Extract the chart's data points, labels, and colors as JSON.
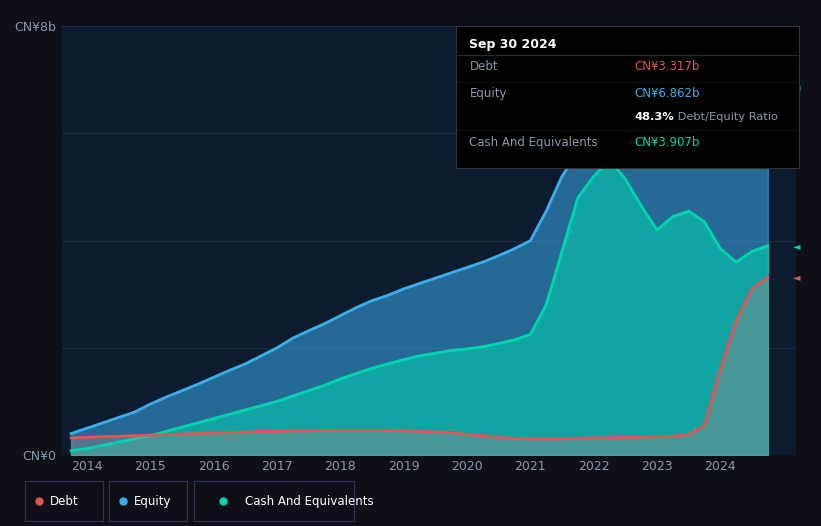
{
  "bg_color": "#0d1117",
  "plot_bg_color": "#0d1b2e",
  "debt_color": "#e05555",
  "equity_color": "#3aadea",
  "cash_color": "#00d4b0",
  "grid_color": "#1a2e44",
  "text_dim": "#8899aa",
  "text_bright": "#ffffff",
  "legend_labels": [
    "Debt",
    "Equity",
    "Cash And Equivalents"
  ],
  "x_ticks": [
    2014,
    2015,
    2016,
    2017,
    2018,
    2019,
    2020,
    2021,
    2022,
    2023,
    2024
  ],
  "ylim": [
    0,
    8
  ],
  "xlim": [
    2013.6,
    2025.2
  ],
  "tooltip_date": "Sep 30 2024",
  "tooltip_debt_val": "CN¥3.317b",
  "tooltip_equity_val": "CN¥6.862b",
  "tooltip_ratio": "48.3%",
  "tooltip_ratio_suffix": " Debt/Equity Ratio",
  "tooltip_cash_val": "CN¥3.907b",
  "years": [
    2013.75,
    2014.0,
    2014.25,
    2014.5,
    2014.75,
    2015.0,
    2015.25,
    2015.5,
    2015.75,
    2016.0,
    2016.25,
    2016.5,
    2016.75,
    2017.0,
    2017.25,
    2017.5,
    2017.75,
    2018.0,
    2018.25,
    2018.5,
    2018.75,
    2019.0,
    2019.25,
    2019.5,
    2019.75,
    2020.0,
    2020.25,
    2020.5,
    2020.75,
    2021.0,
    2021.25,
    2021.5,
    2021.75,
    2022.0,
    2022.25,
    2022.5,
    2022.75,
    2023.0,
    2023.25,
    2023.5,
    2023.75,
    2024.0,
    2024.25,
    2024.5,
    2024.75
  ],
  "debt": [
    0.32,
    0.33,
    0.34,
    0.35,
    0.36,
    0.37,
    0.38,
    0.39,
    0.4,
    0.41,
    0.42,
    0.43,
    0.44,
    0.44,
    0.45,
    0.45,
    0.46,
    0.46,
    0.46,
    0.46,
    0.46,
    0.45,
    0.44,
    0.43,
    0.42,
    0.38,
    0.36,
    0.33,
    0.31,
    0.3,
    0.3,
    0.3,
    0.31,
    0.32,
    0.32,
    0.33,
    0.33,
    0.34,
    0.35,
    0.38,
    0.55,
    1.6,
    2.5,
    3.1,
    3.317
  ],
  "equity": [
    0.4,
    0.5,
    0.6,
    0.7,
    0.8,
    0.95,
    1.08,
    1.2,
    1.32,
    1.45,
    1.58,
    1.7,
    1.85,
    2.0,
    2.18,
    2.32,
    2.45,
    2.6,
    2.75,
    2.88,
    2.98,
    3.1,
    3.2,
    3.3,
    3.4,
    3.5,
    3.6,
    3.72,
    3.85,
    4.0,
    4.55,
    5.2,
    5.65,
    6.1,
    6.55,
    6.9,
    7.2,
    7.42,
    7.52,
    7.55,
    7.5,
    7.42,
    7.35,
    7.2,
    6.862
  ],
  "cash": [
    0.08,
    0.12,
    0.18,
    0.24,
    0.3,
    0.36,
    0.44,
    0.52,
    0.6,
    0.68,
    0.76,
    0.84,
    0.92,
    1.0,
    1.1,
    1.2,
    1.3,
    1.42,
    1.52,
    1.62,
    1.7,
    1.78,
    1.85,
    1.9,
    1.95,
    1.98,
    2.02,
    2.08,
    2.15,
    2.25,
    2.8,
    3.8,
    4.8,
    5.2,
    5.5,
    5.15,
    4.65,
    4.2,
    4.45,
    4.55,
    4.35,
    3.85,
    3.6,
    3.8,
    3.907
  ]
}
